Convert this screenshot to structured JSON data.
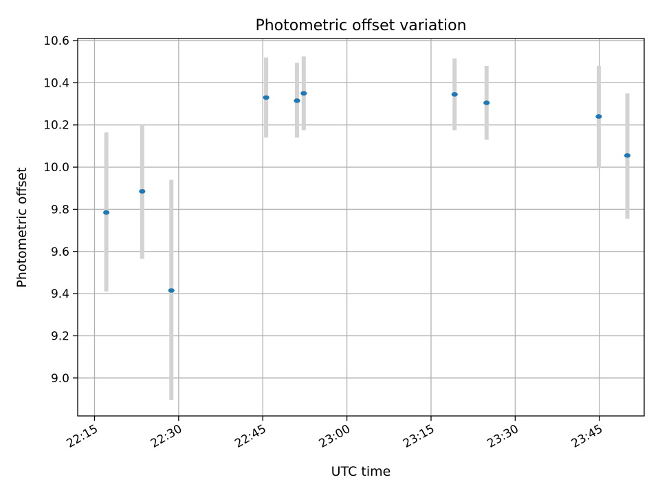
{
  "chart_data": {
    "type": "scatter",
    "title": "Photometric offset variation",
    "xlabel": "UTC time",
    "ylabel": "Photometric offset",
    "x_axis": {
      "type": "time",
      "range": [
        "22:12",
        "23:53"
      ],
      "ticks": [
        "22:15",
        "22:30",
        "22:45",
        "23:00",
        "23:15",
        "23:30",
        "23:45"
      ]
    },
    "y_axis": {
      "range": [
        8.82,
        10.61
      ],
      "ticks": [
        9.0,
        9.2,
        9.4,
        9.6,
        9.8,
        10.0,
        10.2,
        10.4,
        10.6
      ],
      "tick_labels": [
        "9.0",
        "9.2",
        "9.4",
        "9.6",
        "9.8",
        "10.0",
        "10.2",
        "10.4",
        "10.6"
      ]
    },
    "grid": true,
    "colors": {
      "points": "#1f77b4",
      "errorbars": "#d3d3d3",
      "grid": "#b0b0b0"
    },
    "points": [
      {
        "time": "22:17:06",
        "value": 9.785,
        "low": 9.41,
        "high": 10.165
      },
      {
        "time": "22:23:30",
        "value": 9.885,
        "low": 9.565,
        "high": 10.2
      },
      {
        "time": "22:28:42",
        "value": 9.415,
        "low": 8.895,
        "high": 9.94
      },
      {
        "time": "22:45:36",
        "value": 10.33,
        "low": 10.14,
        "high": 10.52
      },
      {
        "time": "22:51:06",
        "value": 10.315,
        "low": 10.14,
        "high": 10.495
      },
      {
        "time": "22:52:18",
        "value": 10.35,
        "low": 10.175,
        "high": 10.525
      },
      {
        "time": "23:19:12",
        "value": 10.345,
        "low": 10.175,
        "high": 10.515
      },
      {
        "time": "23:24:54",
        "value": 10.305,
        "low": 10.13,
        "high": 10.48
      },
      {
        "time": "23:44:54",
        "value": 10.24,
        "low": 9.995,
        "high": 10.48
      },
      {
        "time": "23:50:00",
        "value": 10.055,
        "low": 9.755,
        "high": 10.35
      }
    ]
  }
}
